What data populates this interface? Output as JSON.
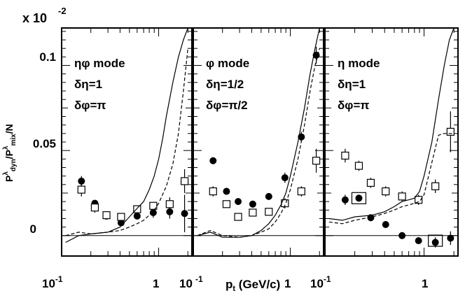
{
  "figure": {
    "scale_factor": "x 10",
    "scale_exponent": "-2",
    "ylabel_main": "P",
    "ylabel_sup1": "λ",
    "ylabel_sub1": "dyn",
    "ylabel_mid": "/P",
    "ylabel_sup2": "λ",
    "ylabel_sub2": "mix",
    "ylabel_tail": "/N",
    "xlabel_main": "p",
    "xlabel_sub": "t",
    "xlabel_tail": " (GeV/c)",
    "y_tick_labels": [
      "0",
      "0.05",
      "0.1"
    ],
    "x_tick_decade_base": "10",
    "x_tick_decade_exp": "-1",
    "x_tick_one": "1",
    "x_tick_ten_left": "10",
    "x_tick_ten_mid": "10"
  },
  "chart_data": [
    {
      "type": "scatter",
      "panel": "eta-phi",
      "annotation": [
        "ηφ mode",
        "δη=1",
        "δφ=π"
      ],
      "xscale": "log",
      "xlim": [
        0.1,
        2.2
      ],
      "ylim": [
        -0.012,
        0.122
      ],
      "grid": false,
      "series": [
        {
          "marker": "filled-circle",
          "x": [
            0.16,
            0.22,
            0.29,
            0.41,
            0.6,
            0.88,
            1.3,
            1.85
          ],
          "y": [
            0.032,
            0.019,
            0.0115,
            0.0075,
            0.0115,
            0.0135,
            0.014,
            0.013
          ],
          "yerr": [
            0.003,
            0.002,
            0.002,
            0.002,
            0.002,
            0.003,
            0.004,
            0.011
          ]
        },
        {
          "marker": "open-square",
          "x": [
            0.16,
            0.22,
            0.29,
            0.41,
            0.6,
            0.88,
            1.3,
            1.85
          ],
          "y": [
            0.027,
            0.0165,
            0.012,
            0.011,
            0.0155,
            0.0175,
            0.0185,
            0.032
          ],
          "yerr": [
            0.004,
            0.003,
            0.002,
            0.002,
            0.002,
            0.002,
            0.004,
            0.007
          ]
        },
        {
          "style": "solid-line",
          "x": [
            0.11,
            0.15,
            0.2,
            0.3,
            0.4,
            0.5,
            0.6,
            0.7,
            0.8,
            0.9,
            1.0,
            1.1,
            1.2,
            1.4,
            1.6,
            1.8,
            2.0
          ],
          "y": [
            -0.004,
            0.0,
            0.001,
            0.002,
            0.005,
            0.011,
            0.016,
            0.02,
            0.027,
            0.035,
            0.045,
            0.057,
            0.07,
            0.09,
            0.105,
            0.115,
            0.122
          ]
        },
        {
          "style": "dashed-line",
          "x": [
            0.11,
            0.15,
            0.2,
            0.3,
            0.4,
            0.5,
            0.6,
            0.7,
            0.8,
            0.9,
            1.0,
            1.2,
            1.4,
            1.6,
            1.8,
            2.0
          ],
          "y": [
            0.0,
            0.002,
            0.001,
            0.002,
            0.003,
            0.005,
            0.007,
            0.009,
            0.012,
            0.015,
            0.019,
            0.029,
            0.042,
            0.06,
            0.085,
            0.11
          ]
        }
      ]
    },
    {
      "type": "scatter",
      "panel": "phi",
      "annotation": [
        "φ mode",
        "δη=1/2",
        "δφ=π/2"
      ],
      "xscale": "log",
      "xlim": [
        0.1,
        2.2
      ],
      "ylim": [
        -0.012,
        0.122
      ],
      "grid": false,
      "series": [
        {
          "marker": "filled-circle",
          "x": [
            0.16,
            0.22,
            0.29,
            0.41,
            0.6,
            0.88,
            1.3,
            1.85
          ],
          "y": [
            0.044,
            0.026,
            0.02,
            0.0185,
            0.023,
            0.034,
            0.058,
            0.106
          ],
          "yerr": [
            0.002,
            0.002,
            0.002,
            0.002,
            0.002,
            0.003,
            0.003,
            0.005
          ]
        },
        {
          "marker": "open-square",
          "x": [
            0.16,
            0.22,
            0.29,
            0.41,
            0.6,
            0.88,
            1.3,
            1.85
          ],
          "y": [
            0.026,
            0.0185,
            0.011,
            0.0135,
            0.014,
            0.019,
            0.026,
            0.044
          ],
          "yerr": [
            0.003,
            0.002,
            0.002,
            0.002,
            0.002,
            0.003,
            0.003,
            0.007
          ]
        },
        {
          "style": "solid-line",
          "x": [
            0.11,
            0.15,
            0.2,
            0.3,
            0.4,
            0.5,
            0.6,
            0.7,
            0.8,
            0.9,
            1.0,
            1.2,
            1.4,
            1.6,
            1.8,
            2.0
          ],
          "y": [
            0.0,
            0.002,
            -0.001,
            -0.001,
            0.0,
            0.003,
            0.007,
            0.012,
            0.018,
            0.025,
            0.035,
            0.055,
            0.075,
            0.095,
            0.11,
            0.122
          ]
        },
        {
          "style": "dashed-line",
          "x": [
            0.11,
            0.15,
            0.2,
            0.3,
            0.4,
            0.5,
            0.6,
            0.7,
            0.8,
            0.9,
            1.0,
            1.2,
            1.4,
            1.6,
            1.8,
            2.0
          ],
          "y": [
            0.0,
            0.003,
            0.0,
            -0.001,
            0.0,
            0.002,
            0.004,
            0.008,
            0.013,
            0.019,
            0.027,
            0.045,
            0.065,
            0.085,
            0.1,
            0.11
          ]
        }
      ]
    },
    {
      "type": "scatter",
      "panel": "eta",
      "annotation": [
        "η mode",
        "δη=1",
        "δφ=π"
      ],
      "xscale": "log",
      "xlim": [
        0.1,
        2.2
      ],
      "ylim": [
        -0.012,
        0.122
      ],
      "grid": false,
      "series": [
        {
          "marker": "filled-circle",
          "x": [
            0.16,
            0.22,
            0.29,
            0.41,
            0.6,
            0.88,
            1.3,
            1.85
          ],
          "y": [
            0.021,
            0.022,
            0.0105,
            0.0065,
            0.0,
            -0.003,
            -0.004,
            -0.0015
          ],
          "yerr": [
            0.003,
            0.002,
            0.002,
            0.002,
            0.002,
            0.002,
            0.003,
            0.004
          ]
        },
        {
          "marker": "open-square",
          "x": [
            0.16,
            0.22,
            0.29,
            0.41,
            0.6,
            0.88,
            1.3,
            1.85
          ],
          "y": [
            0.047,
            0.041,
            0.031,
            0.026,
            0.023,
            0.021,
            0.029,
            0.061
          ],
          "yerr": [
            0.004,
            0.003,
            0.003,
            0.003,
            0.003,
            0.003,
            0.004,
            0.012
          ]
        },
        {
          "marker": "open-box",
          "x": [
            0.22,
            1.3
          ],
          "y": [
            0.022,
            -0.003
          ]
        },
        {
          "style": "solid-line",
          "x": [
            0.11,
            0.15,
            0.2,
            0.3,
            0.4,
            0.5,
            0.6,
            0.7,
            0.8,
            0.9,
            1.0,
            1.2,
            1.4,
            1.6,
            1.8,
            2.0
          ],
          "y": [
            0.01,
            0.009,
            0.011,
            0.012,
            0.014,
            0.017,
            0.02,
            0.021,
            0.022,
            0.026,
            0.035,
            0.055,
            0.08,
            0.1,
            0.115,
            0.122
          ]
        },
        {
          "style": "dashed-line",
          "x": [
            0.11,
            0.15,
            0.2,
            0.3,
            0.4,
            0.5,
            0.6,
            0.7,
            0.8,
            0.9,
            1.0,
            1.2,
            1.4,
            1.6,
            1.8,
            2.0
          ],
          "y": [
            0.008,
            0.007,
            0.009,
            0.011,
            0.013,
            0.015,
            0.017,
            0.018,
            0.019,
            0.02,
            0.024,
            0.043,
            0.059,
            0.06,
            0.06,
            0.06
          ]
        }
      ]
    }
  ]
}
